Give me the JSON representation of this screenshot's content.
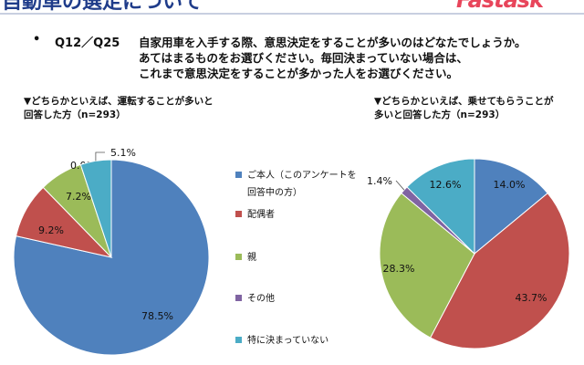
{
  "header": {
    "title": "自動車の選定について",
    "logo_text": "Fastask"
  },
  "question": {
    "bullet": "•",
    "number": "Q12／Q25",
    "lines": [
      "自家用車を入手する際、意思決定をすることが多いのはどなたでしょうか。",
      "あてはまるものをお選びください。毎回決まっていない場合は、",
      "これまで意思決定をすることが多かった人をお選びください。"
    ]
  },
  "colors": {
    "blue": "#4f81bd",
    "red": "#c0504d",
    "green": "#9bbb59",
    "purple": "#8064a2",
    "teal": "#4bacc6",
    "title": "#1f3c8a",
    "logo": "#e8455b"
  },
  "chart_data": [
    {
      "type": "pie",
      "title": "▼どちらかといえば、運転することが多いと回答した方（n=293）",
      "title_lines": [
        "▼どちらかといえば、運転することが多いと",
        "回答した方（n=293）"
      ],
      "categories": [
        "ご本人（このアンケートを回答中の方）",
        "配偶者",
        "親",
        "その他",
        "特に決まっていない"
      ],
      "values": [
        78.5,
        9.2,
        7.2,
        0.0,
        5.1
      ],
      "labels": [
        "78.5%",
        "9.2%",
        "7.2%",
        "0.0%",
        "5.1%"
      ],
      "colors": [
        "#4f81bd",
        "#c0504d",
        "#9bbb59",
        "#8064a2",
        "#4bacc6"
      ],
      "start": "12 o'clock",
      "direction": "clockwise"
    },
    {
      "type": "pie",
      "title": "▼どちらかといえば、乗せてもらうことが多いと回答した方（n=293）",
      "title_lines": [
        "▼どちらかといえば、乗せてもらうことが",
        "多いと回答した方（n=293）"
      ],
      "categories": [
        "ご本人（このアンケートを回答中の方）",
        "配偶者",
        "親",
        "その他",
        "特に決まっていない"
      ],
      "values": [
        14.0,
        43.7,
        28.3,
        1.4,
        12.6
      ],
      "labels": [
        "14.0%",
        "43.7%",
        "28.3%",
        "1.4%",
        "12.6%"
      ],
      "colors": [
        "#4f81bd",
        "#c0504d",
        "#9bbb59",
        "#8064a2",
        "#4bacc6"
      ],
      "start": "12 o'clock",
      "direction": "clockwise"
    }
  ],
  "legend": {
    "items": [
      {
        "lines": [
          "ご本人（このアンケートを",
          "回答中の方）"
        ],
        "color": "#4f81bd"
      },
      {
        "lines": [
          "配偶者"
        ],
        "color": "#c0504d"
      },
      {
        "lines": [
          "親"
        ],
        "color": "#9bbb59"
      },
      {
        "lines": [
          "その他"
        ],
        "color": "#8064a2"
      },
      {
        "lines": [
          "特に決まっていない"
        ],
        "color": "#4bacc6"
      }
    ]
  }
}
